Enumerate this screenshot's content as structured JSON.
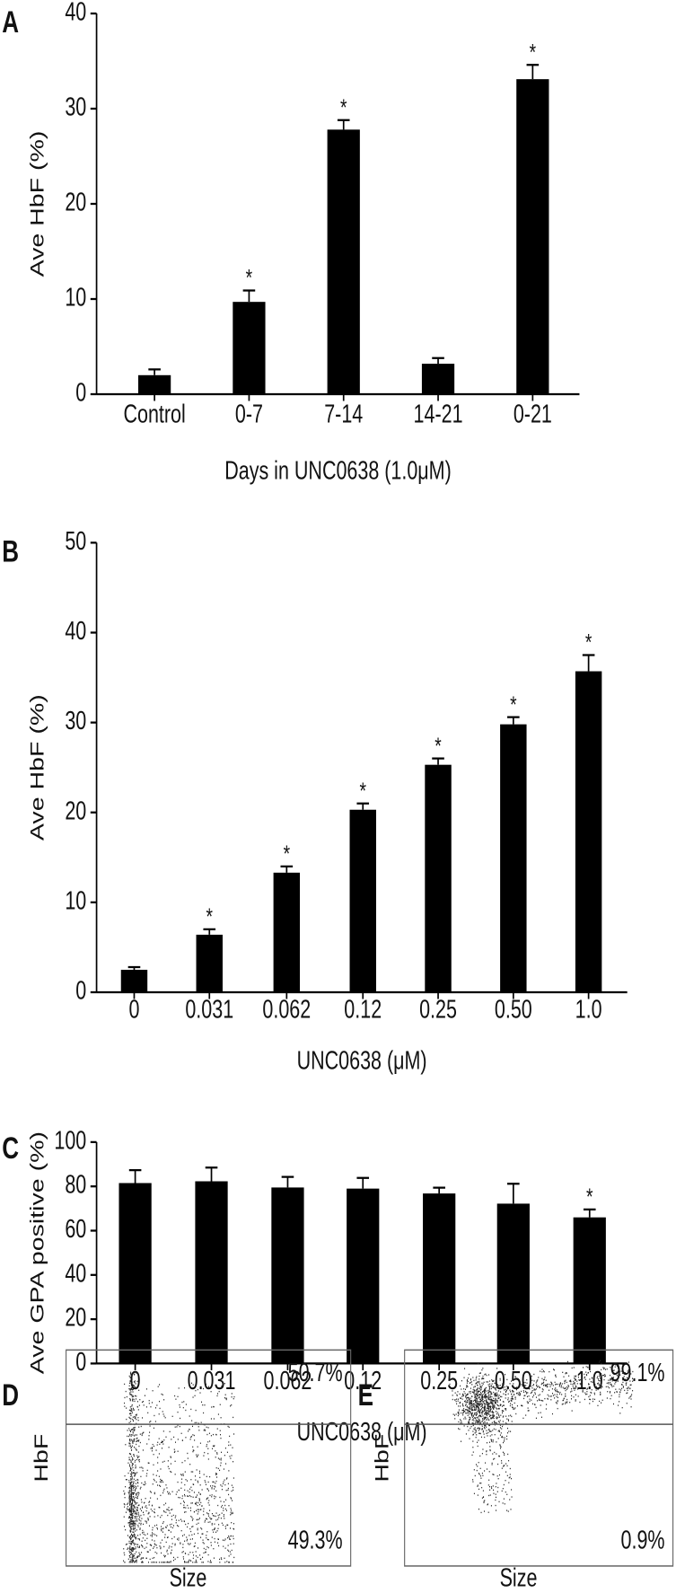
{
  "chart_data": [
    {
      "type": "bar",
      "label": "A",
      "ylabel": "Ave HbF (%)",
      "xlabel": "Days in UNC0638 (1.0μM)",
      "categories": [
        "Control",
        "0-7",
        "7-14",
        "14-21",
        "0-21"
      ],
      "values": [
        2.0,
        9.7,
        27.8,
        3.2,
        33.1
      ],
      "errors": [
        0.6,
        1.2,
        1.0,
        0.6,
        1.5
      ],
      "annotations": [
        null,
        "*",
        "*",
        null,
        "*"
      ],
      "color": "#000000",
      "ylim": [
        0,
        40
      ],
      "yticks": [
        0,
        10,
        20,
        30,
        40
      ]
    },
    {
      "type": "bar",
      "label": "B",
      "ylabel": "Ave HbF (%)",
      "xlabel": "UNC0638 (μM)",
      "categories": [
        "0",
        "0.031",
        "0.062",
        "0.12",
        "0.25",
        "0.50",
        "1.0"
      ],
      "values": [
        2.5,
        6.4,
        13.3,
        20.3,
        25.3,
        29.8,
        35.7
      ],
      "errors": [
        0.3,
        0.6,
        0.7,
        0.7,
        0.7,
        0.8,
        1.8
      ],
      "annotations": [
        null,
        "*",
        "*",
        "*",
        "*",
        "*",
        "*"
      ],
      "color": "#000000",
      "ylim": [
        0,
        50
      ],
      "yticks": [
        0,
        10,
        20,
        30,
        40,
        50
      ]
    },
    {
      "type": "bar",
      "label": "C",
      "ylabel": "Ave GPA positive (%)",
      "xlabel": "UNC0638 (μM)",
      "categories": [
        "0",
        "0.031",
        "0.062",
        "0.12",
        "0.25",
        "0.50",
        "1.0"
      ],
      "values": [
        81.5,
        82.3,
        79.5,
        79.0,
        76.8,
        72.2,
        66.0
      ],
      "errors": [
        5.8,
        6.2,
        4.8,
        4.8,
        2.6,
        9.0,
        3.6
      ],
      "annotations": [
        null,
        null,
        null,
        null,
        null,
        null,
        "*"
      ],
      "color": "#000000",
      "ylim": [
        0,
        100
      ],
      "yticks": [
        0,
        20,
        40,
        60,
        80,
        100
      ]
    },
    {
      "type": "flow",
      "label": "D",
      "ylabel": "HbF",
      "xlabel": "Size",
      "values": [
        50.7,
        49.3
      ],
      "value_labels": [
        "50.7%",
        "49.3%"
      ]
    },
    {
      "type": "flow",
      "label": "E",
      "ylabel": "HbF",
      "xlabel": "Size",
      "values": [
        99.1,
        0.9
      ],
      "value_labels": [
        "99.1%",
        "0.9%"
      ]
    }
  ]
}
